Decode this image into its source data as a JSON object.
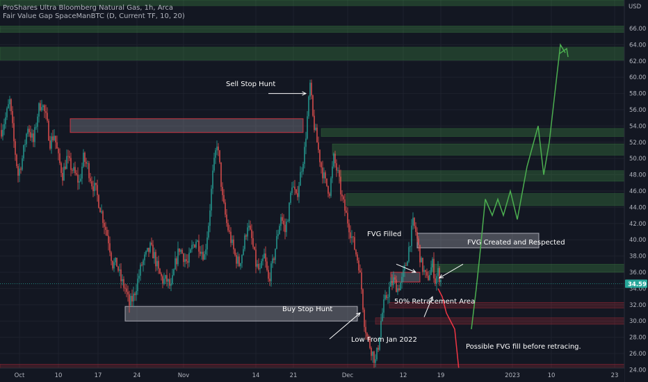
{
  "header": {
    "title": "ProShares Ultra Bloomberg Natural Gas, 1h, Arca",
    "indicator": "Fair Value Gap SpaceManBTC (D, Current TF, 10, 20)"
  },
  "chart_data": {
    "type": "candlestick",
    "currency_label": "USD",
    "last_price": "34.59",
    "ylim": [
      22.5,
      69.5
    ],
    "y_ticks": [
      "24.00",
      "26.00",
      "28.00",
      "30.00",
      "32.00",
      "34.00",
      "36.00",
      "38.00",
      "40.00",
      "42.00",
      "44.00",
      "46.00",
      "48.00",
      "50.00",
      "52.00",
      "54.00",
      "56.00",
      "58.00",
      "60.00",
      "62.00",
      "64.00",
      "66.00"
    ],
    "x_ticks": [
      "Oct",
      "10",
      "17",
      "24",
      "Nov",
      "14",
      "21",
      "Dec",
      "12",
      "19",
      "2023",
      "10",
      "23"
    ],
    "x_tick_bars": [
      28,
      84,
      141,
      197,
      264,
      368,
      422,
      500,
      580,
      634,
      737,
      793,
      884
    ],
    "price_path": [
      [
        0,
        53
      ],
      [
        8,
        55
      ],
      [
        14,
        57
      ],
      [
        20,
        52
      ],
      [
        26,
        48
      ],
      [
        32,
        50
      ],
      [
        40,
        54
      ],
      [
        48,
        52
      ],
      [
        55,
        56
      ],
      [
        60,
        57
      ],
      [
        66,
        55
      ],
      [
        72,
        52
      ],
      [
        78,
        53
      ],
      [
        84,
        50
      ],
      [
        90,
        48
      ],
      [
        96,
        50
      ],
      [
        102,
        49
      ],
      [
        108,
        48
      ],
      [
        114,
        47
      ],
      [
        120,
        50
      ],
      [
        126,
        49
      ],
      [
        132,
        47
      ],
      [
        138,
        46
      ],
      [
        144,
        44
      ],
      [
        150,
        42
      ],
      [
        156,
        40
      ],
      [
        162,
        37
      ],
      [
        168,
        37
      ],
      [
        174,
        35
      ],
      [
        180,
        34
      ],
      [
        186,
        32
      ],
      [
        192,
        33
      ],
      [
        198,
        35
      ],
      [
        204,
        37
      ],
      [
        210,
        38
      ],
      [
        216,
        39
      ],
      [
        222,
        38
      ],
      [
        228,
        36
      ],
      [
        234,
        35
      ],
      [
        240,
        35
      ],
      [
        246,
        34
      ],
      [
        252,
        37
      ],
      [
        258,
        39
      ],
      [
        264,
        38
      ],
      [
        270,
        37
      ],
      [
        276,
        39
      ],
      [
        282,
        40
      ],
      [
        288,
        39
      ],
      [
        294,
        38
      ],
      [
        300,
        42
      ],
      [
        306,
        48
      ],
      [
        312,
        52
      ],
      [
        316,
        49
      ],
      [
        320,
        45
      ],
      [
        326,
        42
      ],
      [
        332,
        40
      ],
      [
        338,
        38
      ],
      [
        344,
        37
      ],
      [
        350,
        39
      ],
      [
        356,
        42
      ],
      [
        362,
        40
      ],
      [
        368,
        37
      ],
      [
        374,
        36
      ],
      [
        380,
        38
      ],
      [
        386,
        35
      ],
      [
        392,
        37
      ],
      [
        398,
        40
      ],
      [
        404,
        43
      ],
      [
        410,
        41
      ],
      [
        416,
        44
      ],
      [
        420,
        47
      ],
      [
        426,
        45
      ],
      [
        432,
        48
      ],
      [
        438,
        51
      ],
      [
        442,
        55
      ],
      [
        446,
        59
      ],
      [
        450,
        55
      ],
      [
        456,
        52
      ],
      [
        462,
        49
      ],
      [
        468,
        47
      ],
      [
        474,
        46
      ],
      [
        480,
        50
      ],
      [
        486,
        48
      ],
      [
        492,
        45
      ],
      [
        498,
        43
      ],
      [
        504,
        41
      ],
      [
        510,
        39
      ],
      [
        516,
        37
      ],
      [
        520,
        34
      ],
      [
        524,
        30
      ],
      [
        528,
        28
      ],
      [
        532,
        27
      ],
      [
        536,
        26
      ],
      [
        540,
        25
      ],
      [
        544,
        27
      ],
      [
        548,
        30
      ],
      [
        552,
        32
      ],
      [
        556,
        33
      ],
      [
        560,
        34
      ],
      [
        566,
        35
      ],
      [
        572,
        34
      ],
      [
        578,
        35
      ],
      [
        584,
        37
      ],
      [
        590,
        40
      ],
      [
        594,
        42
      ],
      [
        598,
        41
      ],
      [
        602,
        39
      ],
      [
        606,
        37
      ],
      [
        610,
        36
      ],
      [
        614,
        35
      ],
      [
        618,
        36
      ],
      [
        622,
        37
      ],
      [
        626,
        35
      ],
      [
        630,
        36
      ],
      [
        634,
        35
      ]
    ],
    "fvg_zones": [
      {
        "y": [
          68.8,
          69.5
        ],
        "color": "green"
      },
      {
        "y": [
          65.5,
          66.3
        ],
        "color": "green"
      },
      {
        "y": [
          62.1,
          63.7
        ],
        "color": "green"
      },
      {
        "y": [
          52.7,
          53.7
        ],
        "color": "green"
      },
      {
        "y": [
          50.4,
          51.8
        ],
        "color": "green"
      },
      {
        "y": [
          47.2,
          48.5
        ],
        "color": "green"
      },
      {
        "y": [
          44.2,
          45.7
        ],
        "color": "green"
      },
      {
        "y": [
          36.0,
          37.0
        ],
        "color": "green"
      },
      {
        "y": [
          31.6,
          32.3
        ],
        "color": "red"
      },
      {
        "y": [
          29.6,
          30.4
        ],
        "color": "red"
      },
      {
        "y": [
          24.1,
          24.7
        ],
        "color": "red"
      },
      {
        "y": [
          23.2,
          23.6
        ],
        "color": "red"
      }
    ],
    "boxes": [
      {
        "x": [
          101,
          436
        ],
        "y": [
          53.2,
          54.9
        ],
        "style": "red"
      },
      {
        "x": [
          180,
          514
        ],
        "y": [
          30.0,
          31.8
        ],
        "style": "white"
      },
      {
        "x": [
          600,
          775
        ],
        "y": [
          39.0,
          40.8
        ],
        "style": "white"
      },
      {
        "x": [
          562,
          604
        ],
        "y": [
          34.8,
          36.0
        ],
        "style": "red"
      }
    ],
    "projection_green": [
      [
        678,
        29
      ],
      [
        685,
        34
      ],
      [
        690,
        38
      ],
      [
        698,
        45
      ],
      [
        708,
        43
      ],
      [
        716,
        45
      ],
      [
        724,
        43
      ],
      [
        734,
        46
      ],
      [
        744,
        42.5
      ],
      [
        758,
        49
      ],
      [
        774,
        54
      ],
      [
        782,
        48
      ],
      [
        790,
        52
      ],
      [
        798,
        58
      ],
      [
        806,
        64
      ],
      [
        813,
        63
      ]
    ],
    "projection_red": [
      [
        630,
        34
      ],
      [
        636,
        33
      ],
      [
        642,
        31
      ],
      [
        648,
        30
      ],
      [
        654,
        29
      ],
      [
        660,
        24
      ]
    ],
    "annotations": [
      {
        "text": "Sell Stop Hunt",
        "arrow": [
          [
            386,
            58
          ],
          [
            440,
            58
          ]
        ]
      },
      {
        "text": "FVG Filled",
        "arrow": [
          [
            570,
            37
          ],
          [
            598,
            36
          ]
        ]
      },
      {
        "text": "FVG Created and Respected",
        "arrow": [
          [
            666,
            37
          ],
          [
            632,
            35.3
          ]
        ]
      },
      {
        "text": "Buy Stop Hunt",
        "arrow": [
          [
            474,
            27.8
          ],
          [
            518,
            31
          ]
        ]
      },
      {
        "text": "50% Retracement Area",
        "arrow": [
          [
            610,
            30.5
          ],
          [
            622,
            33
          ]
        ]
      },
      {
        "text": "Low From Jan 2022",
        "arrow": null
      },
      {
        "text": "Possible FVG fill before retracing.",
        "arrow": null
      }
    ]
  }
}
